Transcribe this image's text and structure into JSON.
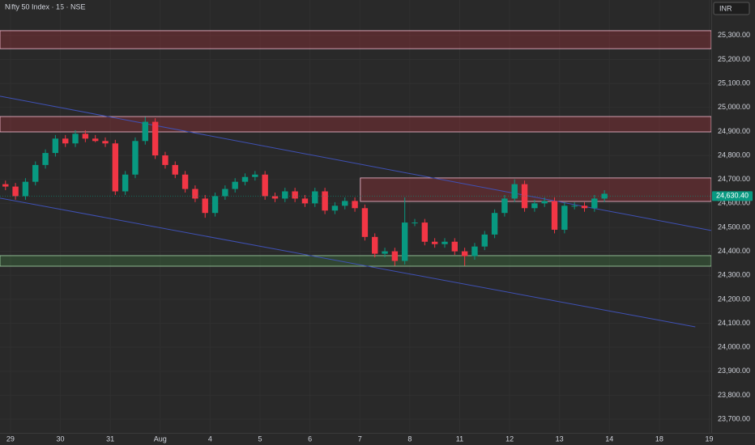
{
  "chart_data": {
    "type": "candlestick",
    "title": "Nifty 50 Index · 15 · NSE",
    "currency": "INR",
    "up_color": "#089981",
    "down_color": "#f23645",
    "xlim": [
      -0.21,
      14.04
    ],
    "xticks": [
      {
        "value": 0,
        "label": "29"
      },
      {
        "value": 1,
        "label": "30"
      },
      {
        "value": 2,
        "label": "31"
      },
      {
        "value": 3,
        "label": "Aug"
      },
      {
        "value": 4,
        "label": "4"
      },
      {
        "value": 5,
        "label": "5"
      },
      {
        "value": 6,
        "label": "6"
      },
      {
        "value": 7,
        "label": "7"
      },
      {
        "value": 8,
        "label": "8"
      },
      {
        "value": 9,
        "label": "11"
      },
      {
        "value": 10,
        "label": "12"
      },
      {
        "value": 11,
        "label": "13"
      },
      {
        "value": 12,
        "label": "14"
      },
      {
        "value": 13,
        "label": "18"
      },
      {
        "value": 14,
        "label": "19"
      }
    ],
    "ylim": [
      23643,
      25448
    ],
    "yticks": [
      {
        "value": 25300,
        "label": "25,300.00"
      },
      {
        "value": 25200,
        "label": "25,200.00"
      },
      {
        "value": 25100,
        "label": "25,100.00"
      },
      {
        "value": 25000,
        "label": "25,000.00"
      },
      {
        "value": 24900,
        "label": "24,900.00"
      },
      {
        "value": 24800,
        "label": "24,800.00"
      },
      {
        "value": 24700,
        "label": "24,700.00"
      },
      {
        "value": 24600,
        "label": "24,600.00"
      },
      {
        "value": 24500,
        "label": "24,500.00"
      },
      {
        "value": 24400,
        "label": "24,400.00"
      },
      {
        "value": 24300,
        "label": "24,300.00"
      },
      {
        "value": 24200,
        "label": "24,200.00"
      },
      {
        "value": 24100,
        "label": "24,100.00"
      },
      {
        "value": 24000,
        "label": "24,000.00"
      },
      {
        "value": 23900,
        "label": "23,900.00"
      },
      {
        "value": 23800,
        "label": "23,800.00"
      },
      {
        "value": 23700,
        "label": "23,700.00"
      }
    ],
    "x": [
      -0.1,
      0.1,
      0.3,
      0.5,
      0.7,
      0.9,
      1.1,
      1.3,
      1.5,
      1.7,
      1.9,
      2.1,
      2.3,
      2.5,
      2.7,
      2.9,
      3.1,
      3.3,
      3.5,
      3.7,
      3.9,
      4.1,
      4.3,
      4.5,
      4.7,
      4.9,
      5.1,
      5.3,
      5.5,
      5.7,
      5.9,
      6.1,
      6.3,
      6.5,
      6.7,
      6.9,
      7.1,
      7.3,
      7.5,
      7.7,
      7.9,
      8.1,
      8.3,
      8.5,
      8.7,
      8.9,
      9.1,
      9.3,
      9.5,
      9.7,
      9.9,
      10.1,
      10.3,
      10.5,
      10.7,
      10.9,
      11.1,
      11.3,
      11.5,
      11.7,
      11.9
    ],
    "open": [
      24680,
      24670,
      24630,
      24690,
      24760,
      24810,
      24870,
      24850,
      24890,
      24870,
      24860,
      24850,
      24650,
      24720,
      24860,
      24940,
      24800,
      24760,
      24720,
      24660,
      24620,
      24560,
      24630,
      24660,
      24690,
      24710,
      24720,
      24630,
      24620,
      24650,
      24620,
      24600,
      24650,
      24570,
      24590,
      24610,
      24580,
      24460,
      24390,
      24400,
      24360,
      24520,
      24520,
      24440,
      24430,
      24440,
      24400,
      24380,
      24420,
      24470,
      24560,
      24620,
      24680,
      24580,
      24600,
      24610,
      24490,
      24590,
      24590,
      24580,
      24620
    ],
    "high": [
      24695,
      24685,
      24705,
      24775,
      24825,
      24885,
      24885,
      24905,
      24905,
      24885,
      24875,
      24865,
      24735,
      24875,
      24960,
      24955,
      24815,
      24775,
      24735,
      24675,
      24635,
      24645,
      24675,
      24705,
      24725,
      24735,
      24735,
      24645,
      24665,
      24665,
      24635,
      24665,
      24665,
      24605,
      24625,
      24625,
      24595,
      24475,
      24415,
      24415,
      24625,
      24535,
      24535,
      24455,
      24455,
      24455,
      24415,
      24435,
      24485,
      24575,
      24635,
      24700,
      24695,
      24615,
      24625,
      24625,
      24605,
      24605,
      24605,
      24635,
      24655
    ],
    "low": [
      24655,
      24615,
      24615,
      24675,
      24745,
      24795,
      24835,
      24835,
      24855,
      24855,
      24835,
      24635,
      24635,
      24705,
      24845,
      24785,
      24745,
      24705,
      24645,
      24605,
      24540,
      24545,
      24615,
      24645,
      24675,
      24695,
      24615,
      24605,
      24605,
      24605,
      24585,
      24585,
      24555,
      24555,
      24575,
      24565,
      24445,
      24375,
      24375,
      24340,
      24345,
      24505,
      24425,
      24415,
      24415,
      24385,
      24340,
      24365,
      24405,
      24455,
      24545,
      24605,
      24565,
      24565,
      24585,
      24475,
      24475,
      24575,
      24565,
      24565,
      24605
    ],
    "close": [
      24670,
      24630,
      24690,
      24760,
      24810,
      24870,
      24850,
      24890,
      24870,
      24860,
      24850,
      24650,
      24720,
      24860,
      24940,
      24800,
      24760,
      24720,
      24660,
      24620,
      24560,
      24630,
      24660,
      24690,
      24710,
      24720,
      24630,
      24620,
      24650,
      24620,
      24600,
      24650,
      24570,
      24590,
      24610,
      24580,
      24460,
      24390,
      24400,
      24360,
      24520,
      24520,
      24440,
      24430,
      24440,
      24400,
      24380,
      24420,
      24470,
      24560,
      24620,
      24680,
      24580,
      24600,
      24610,
      24490,
      24590,
      24590,
      24580,
      24620,
      24640
    ],
    "zones": [
      {
        "top": 25320,
        "bottom": 25245,
        "color": "#f23645"
      },
      {
        "top": 24962,
        "bottom": 24898,
        "color": "#f23645"
      },
      {
        "top": 24706,
        "bottom": 24608,
        "color": "#f23645",
        "from": 7.01
      },
      {
        "top": 24382,
        "bottom": 24338,
        "color": "#4caf50"
      }
    ],
    "trendlines": [
      {
        "x": [
          -0.21,
          14.04
        ],
        "y": [
          25047,
          24487
        ],
        "color": "#3f51b5"
      },
      {
        "x": [
          -0.21,
          13.72
        ],
        "y": [
          24622,
          24085
        ],
        "color": "#3f51b5"
      }
    ],
    "last_price": {
      "value": 24630.4,
      "label": "24,630.40"
    }
  }
}
